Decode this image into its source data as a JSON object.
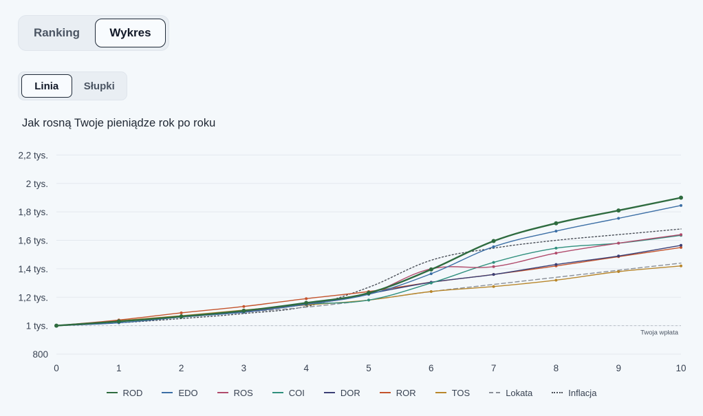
{
  "view_switch": {
    "ranking_label": "Ranking",
    "chart_label": "Wykres",
    "active": "Wykres"
  },
  "chart_style_switch": {
    "line_label": "Linia",
    "bars_label": "Słupki",
    "active": "Linia"
  },
  "chart_title": "Jak rosną Twoje pieniądze rok po roku",
  "chart_data": {
    "type": "line",
    "title": "Jak rosną Twoje pieniądze rok po roku",
    "xlabel": "",
    "ylabel": "",
    "x": [
      0,
      1,
      2,
      3,
      4,
      5,
      6,
      7,
      8,
      9,
      10
    ],
    "x_tick_labels": [
      "0",
      "1",
      "2",
      "3",
      "4",
      "5",
      "6",
      "7",
      "8",
      "9",
      "10"
    ],
    "y_ticks": [
      800,
      1000,
      1200,
      1400,
      1600,
      1800,
      2000,
      2200
    ],
    "y_tick_labels": [
      "800",
      "1 tys.",
      "1,2 tys.",
      "1,4 tys.",
      "1,6 tys.",
      "1,8 tys.",
      "2 tys.",
      "2,2 tys."
    ],
    "ylim": [
      800,
      2260
    ],
    "grid": true,
    "legend_position": "bottom",
    "reference_line": {
      "value": 1000,
      "label": "Twoja wpłata"
    },
    "series": [
      {
        "name": "ROD",
        "color": "#2e6b3f",
        "dash": "solid",
        "markers": true,
        "values": [
          1000,
          1030,
          1065,
          1105,
          1160,
          1230,
          1395,
          1595,
          1720,
          1810,
          1900
        ]
      },
      {
        "name": "EDO",
        "color": "#3b6ea5",
        "dash": "solid",
        "markers": true,
        "values": [
          1000,
          1020,
          1060,
          1095,
          1150,
          1220,
          1365,
          1555,
          1665,
          1755,
          1845
        ]
      },
      {
        "name": "ROS",
        "color": "#b04a6b",
        "dash": "solid",
        "markers": true,
        "values": [
          1000,
          1030,
          1065,
          1100,
          1150,
          1225,
          1400,
          1415,
          1510,
          1580,
          1640
        ]
      },
      {
        "name": "COI",
        "color": "#2f8f7d",
        "dash": "solid",
        "markers": true,
        "values": [
          1000,
          1030,
          1065,
          1100,
          1150,
          1180,
          1300,
          1445,
          1545,
          1580,
          1635
        ]
      },
      {
        "name": "DOR",
        "color": "#3b3f75",
        "dash": "solid",
        "markers": true,
        "values": [
          1000,
          1030,
          1065,
          1095,
          1150,
          1225,
          1305,
          1360,
          1430,
          1490,
          1565
        ]
      },
      {
        "name": "ROR",
        "color": "#c4532c",
        "dash": "solid",
        "markers": true,
        "values": [
          1000,
          1040,
          1090,
          1135,
          1190,
          1240,
          1305,
          1360,
          1420,
          1485,
          1550
        ]
      },
      {
        "name": "TOS",
        "color": "#b8862b",
        "dash": "solid",
        "markers": true,
        "values": [
          1000,
          1035,
          1070,
          1110,
          1145,
          1180,
          1240,
          1275,
          1320,
          1380,
          1420
        ]
      },
      {
        "name": "Lokata",
        "color": "#8a8f98",
        "dash": "dashed",
        "markers": false,
        "values": [
          1000,
          1030,
          1060,
          1095,
          1130,
          1180,
          1240,
          1290,
          1340,
          1390,
          1440
        ]
      },
      {
        "name": "Inflacja",
        "color": "#4a4f58",
        "dash": "dotted",
        "markers": false,
        "values": [
          1000,
          1020,
          1050,
          1085,
          1135,
          1270,
          1460,
          1545,
          1600,
          1640,
          1680
        ]
      }
    ]
  }
}
